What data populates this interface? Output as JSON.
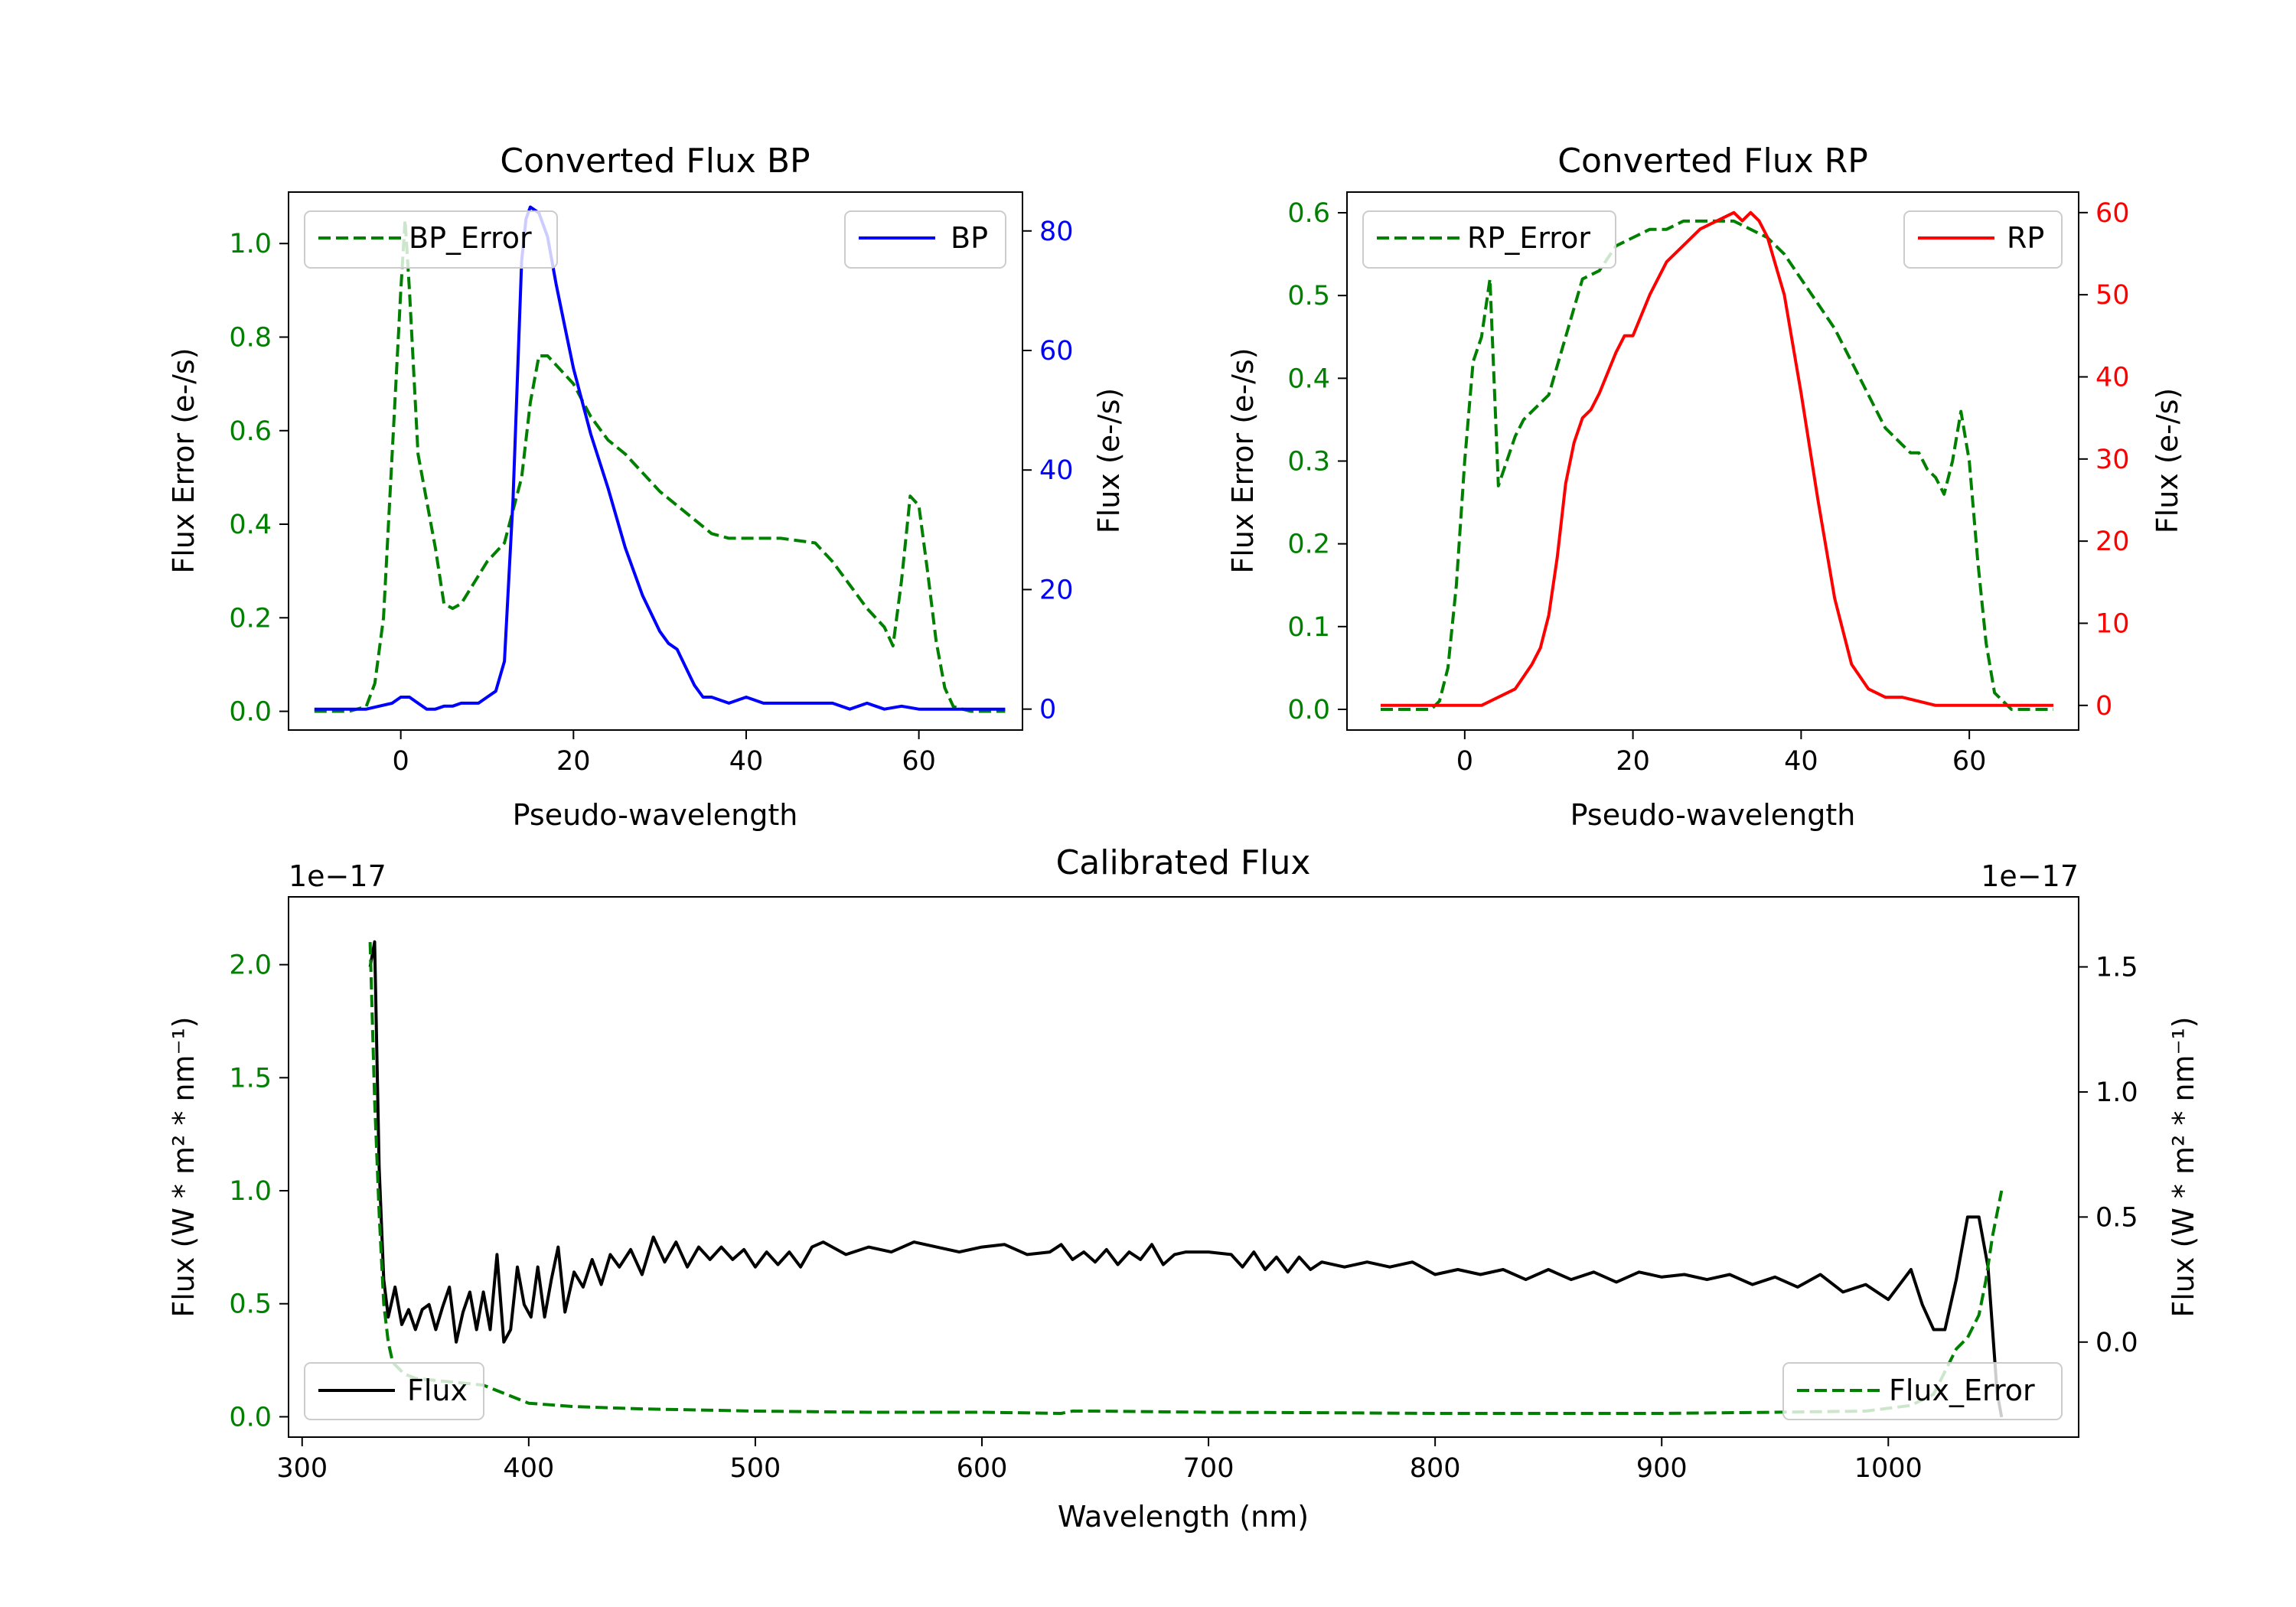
{
  "chart_data": [
    {
      "type": "line",
      "id": "bp",
      "title": "Converted Flux BP",
      "xlabel": "Pseudo-wavelength",
      "ylabel_left": "Flux Error (e-/s)",
      "ylabel_right": "Flux (e-/s)",
      "left_color": "#008000",
      "right_color": "#0000ff",
      "xlim": [
        -13,
        72
      ],
      "ylim_left": [
        -0.04,
        1.11
      ],
      "ylim_right": [
        -3.5,
        86.5
      ],
      "xticks": [
        0,
        20,
        40,
        60
      ],
      "yticks_left": [
        0.0,
        0.2,
        0.4,
        0.6,
        0.8,
        1.0
      ],
      "yticks_right": [
        0,
        20,
        40,
        60,
        80
      ],
      "legend_left": {
        "label": "BP_Error",
        "placement": "upper-left"
      },
      "legend_right": {
        "label": "BP",
        "placement": "upper-right"
      },
      "series": [
        {
          "name": "BP_Error",
          "axis": "left",
          "style": "dashed",
          "color": "#008000",
          "x": [
            -10,
            -6,
            -4,
            -3,
            -2,
            -1,
            0,
            0.5,
            1,
            2,
            3,
            4,
            5,
            6,
            7,
            8,
            10,
            12,
            14,
            15,
            16,
            17,
            18,
            20,
            22,
            24,
            26,
            28,
            30,
            32,
            34,
            36,
            38,
            40,
            44,
            48,
            50,
            52,
            54,
            56,
            57,
            58,
            59,
            60,
            61,
            62,
            63,
            64,
            66,
            70
          ],
          "values": [
            0.0,
            0.0,
            0.01,
            0.06,
            0.2,
            0.55,
            0.9,
            1.05,
            0.9,
            0.55,
            0.45,
            0.35,
            0.23,
            0.22,
            0.23,
            0.26,
            0.32,
            0.36,
            0.5,
            0.66,
            0.76,
            0.76,
            0.74,
            0.7,
            0.63,
            0.58,
            0.55,
            0.51,
            0.47,
            0.44,
            0.41,
            0.38,
            0.37,
            0.37,
            0.37,
            0.36,
            0.32,
            0.27,
            0.22,
            0.18,
            0.14,
            0.28,
            0.46,
            0.44,
            0.3,
            0.15,
            0.05,
            0.01,
            0.0,
            0.0
          ]
        },
        {
          "name": "BP",
          "axis": "right",
          "style": "solid",
          "color": "#0000ff",
          "x": [
            -10,
            -4,
            -1,
            0,
            1,
            2,
            3,
            4,
            5,
            6,
            7,
            8,
            9,
            10,
            11,
            12,
            13,
            14,
            14.5,
            15,
            16,
            17,
            18,
            19,
            20,
            22,
            24,
            26,
            28,
            30,
            31,
            32,
            33,
            34,
            35,
            36,
            38,
            40,
            42,
            44,
            50,
            52,
            54,
            56,
            58,
            60,
            65,
            70
          ],
          "values": [
            0,
            0,
            1,
            2,
            2,
            1,
            0,
            0,
            0.5,
            0.5,
            1,
            1,
            1,
            2,
            3,
            8,
            35,
            75,
            82,
            84,
            83,
            79,
            71,
            64,
            57,
            46,
            37,
            27,
            19,
            13,
            11,
            10,
            7,
            4,
            2,
            2,
            1,
            2,
            1,
            1,
            1,
            0,
            1,
            0,
            0.5,
            0,
            0,
            0
          ]
        }
      ]
    },
    {
      "type": "line",
      "id": "rp",
      "title": "Converted Flux RP",
      "xlabel": "Pseudo-wavelength",
      "ylabel_left": "Flux Error (e-/s)",
      "ylabel_right": "Flux (e-/s)",
      "left_color": "#008000",
      "right_color": "#ff0000",
      "xlim": [
        -14,
        73
      ],
      "ylim_left": [
        -0.025,
        0.625
      ],
      "ylim_right": [
        -3,
        62.5
      ],
      "xticks": [
        0,
        20,
        40,
        60
      ],
      "yticks_left": [
        0.0,
        0.1,
        0.2,
        0.3,
        0.4,
        0.5,
        0.6
      ],
      "yticks_right": [
        0,
        10,
        20,
        30,
        40,
        50,
        60
      ],
      "legend_left": {
        "label": "RP_Error",
        "placement": "upper-left"
      },
      "legend_right": {
        "label": "RP",
        "placement": "upper-right"
      },
      "series": [
        {
          "name": "RP_Error",
          "axis": "left",
          "style": "dashed",
          "color": "#008000",
          "x": [
            -10,
            -4,
            -3,
            -2,
            -1,
            0,
            1,
            2,
            3,
            4,
            5,
            6,
            7,
            8,
            9,
            10,
            12,
            14,
            16,
            18,
            20,
            22,
            24,
            26,
            28,
            30,
            32,
            34,
            36,
            38,
            40,
            42,
            44,
            46,
            48,
            50,
            52,
            53,
            54,
            55,
            56,
            57,
            58,
            59,
            60,
            61,
            62,
            63,
            65,
            70
          ],
          "values": [
            0.0,
            0.0,
            0.01,
            0.05,
            0.15,
            0.3,
            0.42,
            0.45,
            0.52,
            0.27,
            0.3,
            0.33,
            0.35,
            0.36,
            0.37,
            0.38,
            0.45,
            0.52,
            0.53,
            0.56,
            0.57,
            0.58,
            0.58,
            0.59,
            0.59,
            0.59,
            0.59,
            0.58,
            0.57,
            0.55,
            0.52,
            0.49,
            0.46,
            0.42,
            0.38,
            0.34,
            0.32,
            0.31,
            0.31,
            0.29,
            0.28,
            0.26,
            0.3,
            0.36,
            0.3,
            0.18,
            0.08,
            0.02,
            0.0,
            0.0
          ]
        },
        {
          "name": "RP",
          "axis": "right",
          "style": "solid",
          "color": "#ff0000",
          "x": [
            -10,
            0,
            2,
            4,
            6,
            8,
            9,
            10,
            11,
            12,
            13,
            14,
            15,
            16,
            18,
            19,
            20,
            22,
            24,
            26,
            28,
            30,
            32,
            33,
            34,
            35,
            36,
            38,
            40,
            42,
            44,
            46,
            48,
            50,
            52,
            54,
            56,
            58,
            60,
            65,
            70
          ],
          "values": [
            0,
            0,
            0,
            1,
            2,
            5,
            7,
            11,
            18,
            27,
            32,
            35,
            36,
            38,
            43,
            45,
            45,
            50,
            54,
            56,
            58,
            59,
            60,
            59,
            60,
            59,
            57,
            50,
            38,
            25,
            13,
            5,
            2,
            1,
            1,
            0.5,
            0,
            0,
            0,
            0,
            0
          ]
        }
      ]
    },
    {
      "type": "line",
      "id": "cal",
      "title": "Calibrated Flux",
      "xlabel": "Wavelength (nm)",
      "ylabel_left": "Flux (W * m² * nm⁻¹)",
      "ylabel_right": "Flux (W * m² * nm⁻¹)",
      "left_color": "#008000",
      "right_color": "#000000",
      "offset_left": "1e−17",
      "offset_right": "1e−17",
      "xlim": [
        294,
        1084
      ],
      "ylim_left": [
        -0.09,
        2.3
      ],
      "ylim_right": [
        -0.38,
        1.78
      ],
      "xticks": [
        300,
        400,
        500,
        600,
        700,
        800,
        900,
        1000
      ],
      "yticks_left": [
        0.0,
        0.5,
        1.0,
        1.5,
        2.0
      ],
      "yticks_right": [
        0.0,
        0.5,
        1.0,
        1.5
      ],
      "legend_left": {
        "label": "Flux",
        "placement": "lower-left"
      },
      "legend_right": {
        "label": "Flux_Error",
        "placement": "lower-right"
      },
      "series": [
        {
          "name": "Flux",
          "axis": "right",
          "style": "solid",
          "color": "#000000",
          "x": [
            330,
            332,
            334,
            336,
            338,
            341,
            344,
            347,
            350,
            353,
            356,
            359,
            362,
            365,
            368,
            371,
            374,
            377,
            380,
            383,
            386,
            389,
            392,
            395,
            398,
            401,
            404,
            407,
            410,
            413,
            416,
            420,
            424,
            428,
            432,
            436,
            440,
            445,
            450,
            455,
            460,
            465,
            470,
            475,
            480,
            485,
            490,
            495,
            500,
            505,
            510,
            515,
            520,
            525,
            530,
            540,
            550,
            560,
            570,
            580,
            590,
            600,
            610,
            620,
            630,
            635,
            640,
            645,
            650,
            655,
            660,
            665,
            670,
            675,
            680,
            685,
            690,
            700,
            710,
            715,
            720,
            725,
            730,
            735,
            740,
            745,
            750,
            760,
            770,
            780,
            790,
            800,
            810,
            820,
            830,
            840,
            850,
            860,
            870,
            880,
            890,
            900,
            910,
            920,
            930,
            940,
            950,
            960,
            970,
            980,
            990,
            1000,
            1010,
            1015,
            1020,
            1025,
            1030,
            1035,
            1040,
            1044,
            1048,
            1050
          ],
          "values": [
            1.5,
            1.6,
            0.7,
            0.25,
            0.1,
            0.22,
            0.07,
            0.13,
            0.05,
            0.13,
            0.15,
            0.05,
            0.14,
            0.22,
            -0.0,
            0.12,
            0.2,
            0.05,
            0.2,
            0.05,
            0.35,
            0.0,
            0.05,
            0.3,
            0.15,
            0.1,
            0.3,
            0.1,
            0.25,
            0.38,
            0.12,
            0.28,
            0.22,
            0.33,
            0.23,
            0.35,
            0.3,
            0.37,
            0.27,
            0.42,
            0.32,
            0.4,
            0.3,
            0.38,
            0.33,
            0.38,
            0.33,
            0.37,
            0.3,
            0.36,
            0.31,
            0.36,
            0.3,
            0.38,
            0.4,
            0.35,
            0.38,
            0.36,
            0.4,
            0.38,
            0.36,
            0.38,
            0.39,
            0.35,
            0.36,
            0.39,
            0.33,
            0.36,
            0.32,
            0.37,
            0.31,
            0.36,
            0.33,
            0.39,
            0.31,
            0.35,
            0.36,
            0.36,
            0.35,
            0.3,
            0.36,
            0.29,
            0.34,
            0.28,
            0.34,
            0.29,
            0.32,
            0.3,
            0.32,
            0.3,
            0.32,
            0.27,
            0.29,
            0.27,
            0.29,
            0.25,
            0.29,
            0.25,
            0.28,
            0.24,
            0.28,
            0.26,
            0.27,
            0.25,
            0.27,
            0.23,
            0.26,
            0.22,
            0.27,
            0.2,
            0.23,
            0.17,
            0.29,
            0.15,
            0.05,
            0.05,
            0.25,
            0.5,
            0.5,
            0.3,
            -0.2,
            -0.3
          ]
        },
        {
          "name": "Flux_Error",
          "axis": "left",
          "style": "dashed",
          "color": "#008000",
          "x": [
            330,
            332,
            334,
            336,
            338,
            340,
            345,
            350,
            360,
            370,
            380,
            390,
            400,
            420,
            450,
            500,
            550,
            600,
            635,
            640,
            650,
            700,
            750,
            800,
            850,
            900,
            950,
            990,
            1010,
            1020,
            1025,
            1030,
            1035,
            1040,
            1043,
            1046,
            1050
          ],
          "values": [
            2.1,
            1.4,
            0.9,
            0.5,
            0.33,
            0.24,
            0.19,
            0.17,
            0.16,
            0.15,
            0.14,
            0.1,
            0.06,
            0.045,
            0.035,
            0.025,
            0.02,
            0.02,
            0.015,
            0.025,
            0.025,
            0.02,
            0.018,
            0.015,
            0.015,
            0.015,
            0.02,
            0.025,
            0.05,
            0.1,
            0.2,
            0.3,
            0.35,
            0.45,
            0.6,
            0.8,
            1.0
          ]
        }
      ]
    }
  ]
}
